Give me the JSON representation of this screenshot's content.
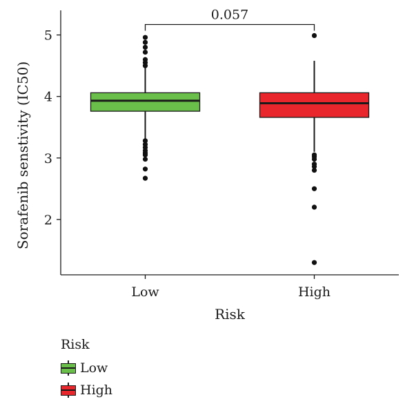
{
  "chart_data": {
    "type": "box",
    "title": "",
    "xlabel": "Risk",
    "ylabel": "Sorafenib senstivity (IC50)",
    "ylim": [
      1.1,
      5.4
    ],
    "yticks": [
      2,
      3,
      4,
      5
    ],
    "categories": [
      "Low",
      "High"
    ],
    "groups": [
      {
        "name": "Low",
        "color": "#6abf4b",
        "q1": 3.76,
        "median": 3.93,
        "q3": 4.06,
        "whisker_low": 3.3,
        "whisker_high": 4.5,
        "outliers": [
          4.96,
          4.88,
          4.8,
          4.72,
          4.6,
          4.55,
          4.5,
          3.28,
          3.22,
          3.17,
          3.12,
          3.08,
          3.05,
          2.98,
          2.82,
          2.67
        ]
      },
      {
        "name": "High",
        "color": "#e8262b",
        "q1": 3.66,
        "median": 3.89,
        "q3": 4.06,
        "whisker_low": 3.1,
        "whisker_high": 4.58,
        "outliers": [
          4.99,
          3.05,
          3.02,
          2.98,
          2.9,
          2.86,
          2.8,
          2.5,
          2.2,
          1.3
        ]
      }
    ],
    "comparison": {
      "label": "0.057",
      "between": [
        "Low",
        "High"
      ],
      "y": 5.17
    },
    "legend": {
      "title": "Risk",
      "position": "bottom-left",
      "items": [
        "Low",
        "High"
      ]
    }
  }
}
